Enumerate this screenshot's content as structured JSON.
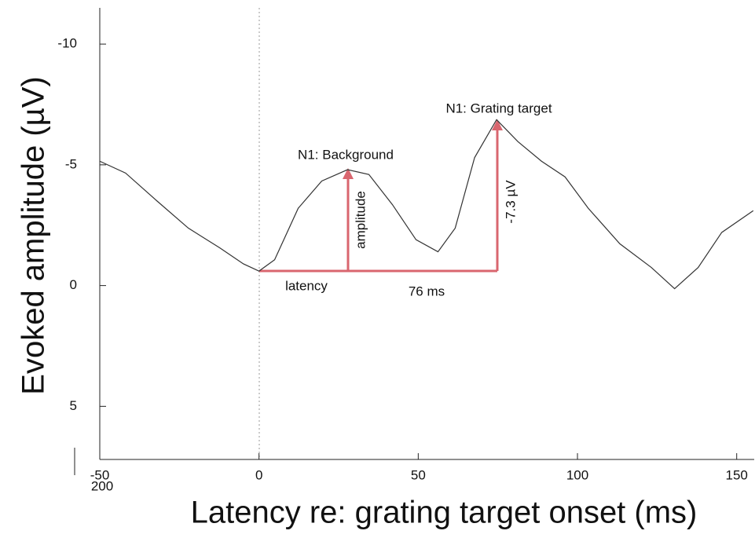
{
  "chart_data": {
    "type": "line",
    "x_label": "Latency re: grating target onset (ms)",
    "y_label": "Evoked amplitude (µV)",
    "x": [
      -50,
      -41.9,
      -32,
      -22.2,
      -12.3,
      -4.9,
      0,
      4.9,
      12.3,
      19.7,
      27.8,
      34.5,
      41.9,
      49.3,
      56.2,
      61.6,
      67.7,
      74.6,
      81.3,
      88.7,
      96.1,
      103.4,
      113.3,
      123.2,
      130.5,
      137.9,
      145.3,
      155.2
    ],
    "series": [
      {
        "color": "#333333",
        "values": [
          -5.15,
          -4.66,
          -3.5,
          -2.38,
          -1.56,
          -0.9,
          -0.6,
          -1.07,
          -3.2,
          -4.33,
          -4.8,
          -4.6,
          -3.35,
          -1.9,
          -1.4,
          -2.38,
          -5.3,
          -6.87,
          -5.96,
          -5.15,
          -4.5,
          -3.2,
          -1.73,
          -0.75,
          0.13,
          -0.75,
          -2.2,
          -3.1
        ]
      }
    ],
    "xlim": [
      -50,
      155.5
    ],
    "xticks": [
      -50,
      0,
      50,
      100,
      150
    ],
    "ylim": [
      -11.5,
      7.2
    ],
    "yticks": [
      -10,
      -5,
      0,
      5
    ],
    "y_inverted": true,
    "annotations": [
      "N1: Background",
      "N1: Grating target",
      "amplitude",
      "-7.3 µV",
      "latency",
      "76 ms",
      "200"
    ],
    "annotation_color": "#d9666f"
  }
}
